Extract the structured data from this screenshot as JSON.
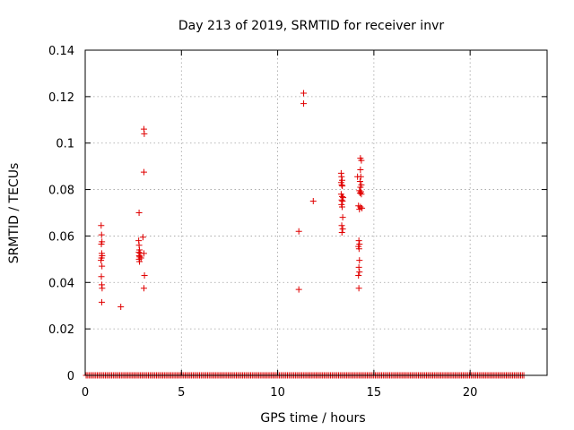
{
  "chart_data": {
    "type": "scatter",
    "title": "Day 213 of 2019, SRMTID for receiver invr",
    "xlabel": "GPS time / hours",
    "ylabel": "SRMTID / TECUs",
    "xlim": [
      0,
      24
    ],
    "ylim": [
      0,
      0.14
    ],
    "x_ticks": [
      0,
      5,
      10,
      15,
      20
    ],
    "y_ticks": [
      0,
      0.02,
      0.04,
      0.06,
      0.08,
      0.1,
      0.12,
      0.14
    ],
    "x_tick_labels": [
      "0",
      "5",
      "10",
      "15",
      "20"
    ],
    "y_tick_labels": [
      "0",
      "0.02",
      "0.04",
      "0.06",
      "0.08",
      "0.1",
      "0.12",
      "0.14"
    ],
    "grid": true,
    "marker": "plus",
    "color": "#e00000",
    "zero_band": {
      "x_start": 0.05,
      "x_end": 22.8,
      "step": 0.083,
      "y": 0
    },
    "points": [
      [
        0.83,
        0.0645
      ],
      [
        0.85,
        0.0605
      ],
      [
        0.87,
        0.0575
      ],
      [
        0.84,
        0.0565
      ],
      [
        0.86,
        0.0525
      ],
      [
        0.88,
        0.0515
      ],
      [
        0.85,
        0.0505
      ],
      [
        0.82,
        0.0495
      ],
      [
        0.87,
        0.047
      ],
      [
        0.84,
        0.0425
      ],
      [
        0.86,
        0.039
      ],
      [
        0.88,
        0.0375
      ],
      [
        0.86,
        0.0315
      ],
      [
        1.85,
        0.0295
      ],
      [
        2.8,
        0.07
      ],
      [
        2.78,
        0.058
      ],
      [
        2.8,
        0.056
      ],
      [
        2.82,
        0.054
      ],
      [
        2.79,
        0.053
      ],
      [
        2.81,
        0.0515
      ],
      [
        2.83,
        0.051
      ],
      [
        2.8,
        0.05
      ],
      [
        2.82,
        0.049
      ],
      [
        2.85,
        0.0525
      ],
      [
        2.9,
        0.0505
      ],
      [
        3.05,
        0.106
      ],
      [
        3.07,
        0.104
      ],
      [
        3.05,
        0.0875
      ],
      [
        3.0,
        0.0595
      ],
      [
        3.05,
        0.0525
      ],
      [
        3.08,
        0.043
      ],
      [
        3.05,
        0.0375
      ],
      [
        11.1,
        0.062
      ],
      [
        11.1,
        0.037
      ],
      [
        11.35,
        0.1215
      ],
      [
        11.35,
        0.117
      ],
      [
        11.85,
        0.075
      ],
      [
        13.3,
        0.087
      ],
      [
        13.32,
        0.0855
      ],
      [
        13.35,
        0.084
      ],
      [
        13.3,
        0.083
      ],
      [
        13.33,
        0.082
      ],
      [
        13.36,
        0.0815
      ],
      [
        13.3,
        0.078
      ],
      [
        13.35,
        0.077
      ],
      [
        13.4,
        0.0765
      ],
      [
        13.33,
        0.0755
      ],
      [
        13.37,
        0.075
      ],
      [
        13.32,
        0.0735
      ],
      [
        13.35,
        0.0725
      ],
      [
        13.38,
        0.068
      ],
      [
        13.33,
        0.0645
      ],
      [
        13.38,
        0.063
      ],
      [
        13.34,
        0.0615
      ],
      [
        14.15,
        0.0855
      ],
      [
        14.3,
        0.0935
      ],
      [
        14.35,
        0.0925
      ],
      [
        14.3,
        0.0885
      ],
      [
        14.32,
        0.0855
      ],
      [
        14.28,
        0.0835
      ],
      [
        14.35,
        0.082
      ],
      [
        14.3,
        0.081
      ],
      [
        14.25,
        0.0795
      ],
      [
        14.33,
        0.079
      ],
      [
        14.28,
        0.0785
      ],
      [
        14.35,
        0.078
      ],
      [
        14.2,
        0.073
      ],
      [
        14.3,
        0.0725
      ],
      [
        14.38,
        0.072
      ],
      [
        14.25,
        0.0715
      ],
      [
        14.22,
        0.058
      ],
      [
        14.25,
        0.0565
      ],
      [
        14.2,
        0.0555
      ],
      [
        14.23,
        0.0545
      ],
      [
        14.25,
        0.0495
      ],
      [
        14.22,
        0.0465
      ],
      [
        14.25,
        0.0445
      ],
      [
        14.2,
        0.043
      ],
      [
        14.22,
        0.0375
      ]
    ]
  }
}
